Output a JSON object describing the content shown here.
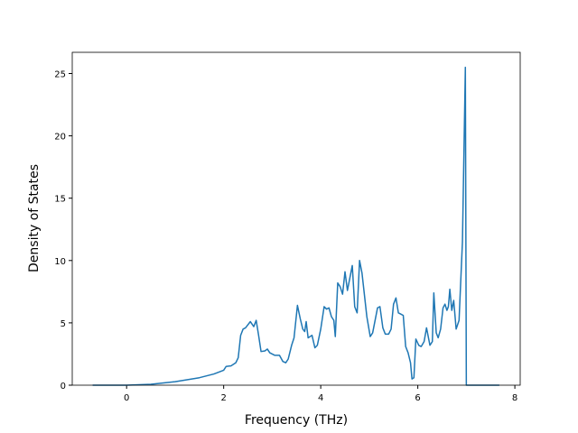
{
  "chart_data": {
    "type": "line",
    "x_label": "Frequency (THz)",
    "y_label": "Density of States",
    "xlim": [
      -1.12,
      8.11
    ],
    "ylim": [
      0,
      26.7
    ],
    "xticks": [
      0,
      2,
      4,
      6,
      8
    ],
    "yticks": [
      0,
      5,
      10,
      15,
      20,
      25
    ],
    "x": [
      -0.7,
      0,
      0.5,
      1.0,
      1.5,
      1.8,
      2.0,
      2.05,
      2.15,
      2.25,
      2.3,
      2.35,
      2.4,
      2.45,
      2.55,
      2.62,
      2.67,
      2.72,
      2.77,
      2.85,
      2.9,
      2.95,
      3.05,
      3.15,
      3.22,
      3.28,
      3.33,
      3.4,
      3.45,
      3.52,
      3.58,
      3.63,
      3.67,
      3.7,
      3.74,
      3.82,
      3.88,
      3.93,
      4.0,
      4.07,
      4.12,
      4.17,
      4.22,
      4.27,
      4.3,
      4.35,
      4.4,
      4.45,
      4.5,
      4.55,
      4.65,
      4.7,
      4.75,
      4.8,
      4.85,
      4.95,
      5.02,
      5.07,
      5.17,
      5.22,
      5.28,
      5.33,
      5.4,
      5.45,
      5.5,
      5.55,
      5.6,
      5.65,
      5.7,
      5.75,
      5.8,
      5.85,
      5.88,
      5.92,
      5.96,
      6.02,
      6.07,
      6.13,
      6.18,
      6.25,
      6.3,
      6.33,
      6.38,
      6.42,
      6.47,
      6.52,
      6.56,
      6.6,
      6.63,
      6.66,
      6.7,
      6.74,
      6.79,
      6.85,
      6.92,
      6.98,
      7.0,
      7.68
    ],
    "series": [
      {
        "color": "#1f77b4",
        "values": [
          0,
          0,
          0.07,
          0.28,
          0.6,
          0.9,
          1.2,
          1.5,
          1.55,
          1.8,
          2.2,
          4.0,
          4.5,
          4.6,
          5.1,
          4.7,
          5.2,
          4.0,
          2.7,
          2.75,
          2.9,
          2.6,
          2.4,
          2.4,
          1.9,
          1.8,
          2.1,
          3.2,
          3.8,
          6.4,
          5.3,
          4.5,
          4.3,
          5.1,
          3.8,
          4.0,
          3.0,
          3.2,
          4.5,
          6.3,
          6.1,
          6.2,
          5.5,
          5.2,
          3.9,
          8.2,
          7.9,
          7.3,
          9.1,
          7.6,
          9.6,
          6.3,
          5.8,
          10.0,
          9.0,
          5.5,
          3.9,
          4.2,
          6.2,
          6.3,
          4.6,
          4.1,
          4.1,
          4.5,
          6.5,
          7.0,
          5.8,
          5.7,
          5.6,
          3.1,
          2.6,
          1.8,
          0.5,
          0.6,
          3.7,
          3.2,
          3.1,
          3.5,
          4.6,
          3.2,
          3.5,
          7.4,
          4.2,
          3.8,
          4.5,
          6.2,
          6.5,
          6.0,
          6.3,
          7.7,
          6.0,
          6.8,
          4.5,
          5.2,
          11.5,
          25.5,
          0,
          0
        ]
      }
    ]
  }
}
